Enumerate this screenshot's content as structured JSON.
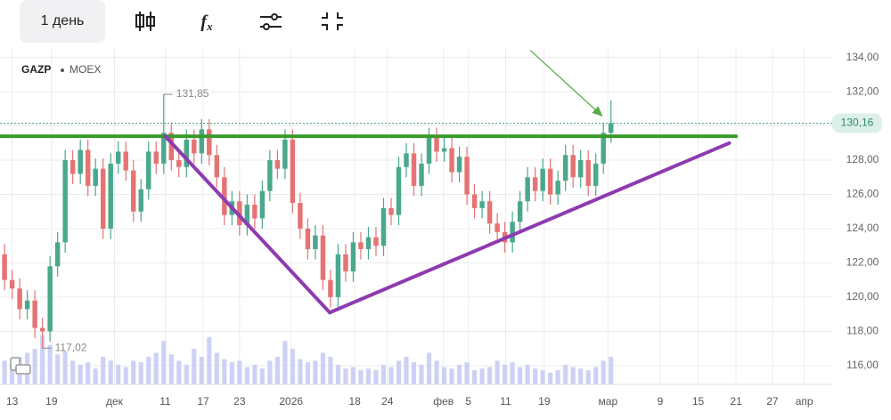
{
  "toolbar": {
    "interval": "1 день"
  },
  "chart_data": {
    "type": "candlestick",
    "ticker": "GAZP",
    "exchange": "MOEX",
    "open": [
      122.5,
      121,
      120.5,
      119.3,
      119.8,
      118.2,
      118.0,
      121.8,
      123.2,
      128.0,
      127.2,
      128.6,
      126.5,
      127.5,
      124.0,
      127.8,
      128.5,
      127.4,
      125.0,
      126.3,
      128.5,
      127.8,
      129.6,
      128.0,
      127.6,
      129.2,
      128.4,
      129.8,
      128.3,
      127.0,
      124.8,
      125.6,
      124.2,
      125.4,
      124.6,
      126.2,
      128.0,
      127.5,
      129.2,
      125.5,
      124.0,
      122.8,
      123.6,
      121.0,
      120.0,
      122.5,
      121.5,
      123.2,
      122.8,
      123.5,
      123.0,
      125.2,
      124.8,
      127.6,
      128.4,
      126.5,
      127.8,
      129.3,
      128.5,
      128.7,
      127.3,
      128.2,
      126.0,
      125.2,
      125.6,
      124.3,
      123.8,
      123.2,
      124.4,
      125.6,
      127.0,
      126.2,
      127.5,
      126.0,
      126.8,
      128.3,
      127.0,
      128.0,
      126.5,
      127.8,
      129.6
    ],
    "high": [
      123.1,
      121.6,
      121.1,
      120.4,
      120.4,
      118.8,
      122.4,
      123.8,
      128.6,
      128.6,
      129.2,
      129.2,
      128.1,
      128.1,
      128.4,
      129.1,
      129.1,
      128.0,
      126.9,
      129.1,
      129.1,
      131.85,
      130.2,
      128.6,
      129.8,
      129.8,
      130.4,
      130.4,
      128.9,
      127.6,
      126.2,
      126.2,
      126.0,
      126.0,
      126.8,
      128.6,
      128.6,
      129.8,
      129.8,
      126.1,
      124.6,
      124.2,
      124.2,
      121.6,
      123.1,
      123.1,
      123.8,
      123.8,
      124.1,
      124.1,
      125.8,
      125.8,
      128.2,
      129.0,
      129.0,
      128.4,
      129.9,
      129.9,
      129.3,
      129.3,
      128.8,
      128.8,
      126.6,
      126.2,
      126.2,
      124.9,
      124.4,
      125.0,
      126.2,
      127.6,
      127.6,
      128.1,
      128.1,
      127.4,
      128.9,
      128.9,
      128.6,
      128.6,
      128.4,
      130.2,
      131.5
    ],
    "low": [
      120.4,
      119.9,
      118.7,
      118.7,
      117.6,
      117.02,
      117.4,
      121.2,
      122.6,
      126.6,
      126.6,
      125.9,
      125.9,
      123.4,
      123.4,
      127.2,
      126.8,
      124.4,
      124.4,
      125.7,
      127.2,
      127.2,
      127.4,
      127.0,
      127.0,
      127.8,
      127.8,
      127.7,
      126.4,
      124.2,
      124.2,
      123.6,
      123.6,
      124.0,
      124.0,
      125.6,
      126.9,
      126.9,
      124.9,
      123.4,
      122.2,
      122.2,
      120.4,
      119.4,
      119.4,
      120.9,
      120.9,
      122.2,
      122.2,
      122.4,
      122.4,
      124.2,
      124.2,
      127.0,
      125.9,
      125.9,
      127.2,
      127.9,
      127.9,
      126.7,
      126.7,
      125.4,
      124.6,
      124.6,
      123.7,
      123.2,
      122.6,
      122.6,
      123.8,
      125.0,
      125.6,
      125.6,
      125.4,
      125.4,
      126.2,
      126.4,
      126.4,
      125.9,
      125.9,
      127.2,
      129.0
    ],
    "close": [
      121,
      120.5,
      119.3,
      119.8,
      118.2,
      118.0,
      121.8,
      123.2,
      128.0,
      127.2,
      128.6,
      126.5,
      127.5,
      124.0,
      127.8,
      128.5,
      127.4,
      125.0,
      126.3,
      128.5,
      127.8,
      129.6,
      128.0,
      127.6,
      129.2,
      128.4,
      129.8,
      128.3,
      127.0,
      124.8,
      125.6,
      124.2,
      125.4,
      124.6,
      126.2,
      128.0,
      127.5,
      129.2,
      125.5,
      124.0,
      122.8,
      123.6,
      121.0,
      120.0,
      122.5,
      121.5,
      123.2,
      122.8,
      123.5,
      123.0,
      125.2,
      124.8,
      127.6,
      128.4,
      126.5,
      127.8,
      129.3,
      128.5,
      128.7,
      127.3,
      128.2,
      126.0,
      125.2,
      125.6,
      124.3,
      123.8,
      123.2,
      124.4,
      125.6,
      127.0,
      126.2,
      127.5,
      126.0,
      126.8,
      128.3,
      127.0,
      128.0,
      126.5,
      127.8,
      129.6,
      130.16
    ],
    "volume": [
      30,
      28,
      35,
      40,
      45,
      62,
      50,
      38,
      42,
      30,
      25,
      28,
      20,
      35,
      30,
      25,
      22,
      30,
      28,
      35,
      40,
      55,
      38,
      30,
      25,
      45,
      35,
      60,
      40,
      32,
      28,
      30,
      22,
      25,
      20,
      30,
      35,
      55,
      45,
      32,
      28,
      30,
      40,
      35,
      25,
      20,
      22,
      18,
      20,
      18,
      25,
      22,
      30,
      35,
      28,
      25,
      40,
      30,
      22,
      20,
      25,
      28,
      18,
      20,
      22,
      30,
      25,
      28,
      22,
      25,
      20,
      18,
      15,
      18,
      25,
      22,
      20,
      18,
      22,
      30,
      35
    ],
    "up_color": "#4aa88c",
    "down_color": "#e57373",
    "volume_color": "#cdd1f6",
    "xlim": [
      -0.6,
      109.3
    ],
    "xticks": [
      {
        "value": 1,
        "label": "13"
      },
      {
        "value": 6.2,
        "label": "19"
      },
      {
        "value": 14.5,
        "label": "дек"
      },
      {
        "value": 21.2,
        "label": "11"
      },
      {
        "value": 26.2,
        "label": "17"
      },
      {
        "value": 31,
        "label": "23"
      },
      {
        "value": 37.8,
        "label": "2026"
      },
      {
        "value": 46.2,
        "label": "18"
      },
      {
        "value": 50.5,
        "label": "24"
      },
      {
        "value": 57.9,
        "label": "фев"
      },
      {
        "value": 61.2,
        "label": "5"
      },
      {
        "value": 66.1,
        "label": "11"
      },
      {
        "value": 71.2,
        "label": "19"
      },
      {
        "value": 79.6,
        "label": "мар"
      },
      {
        "value": 86.5,
        "label": "9"
      },
      {
        "value": 91.5,
        "label": "15"
      },
      {
        "value": 96.5,
        "label": "21"
      },
      {
        "value": 101.3,
        "label": "27"
      },
      {
        "value": 105.5,
        "label": "апр"
      }
    ],
    "ylim": [
      114.9,
      134.5
    ],
    "yticks": [
      {
        "value": 116,
        "label": "116,00"
      },
      {
        "value": 118,
        "label": "118,00"
      },
      {
        "value": 120,
        "label": "120,00"
      },
      {
        "value": 122,
        "label": "122,00"
      },
      {
        "value": 124,
        "label": "124,00"
      },
      {
        "value": 126,
        "label": "126,00"
      },
      {
        "value": 128,
        "label": "128,00"
      },
      {
        "value": 130,
        "label": "130,00"
      },
      {
        "value": 132,
        "label": "132,00"
      },
      {
        "value": 134,
        "label": "134,00"
      }
    ],
    "grid": true,
    "last_price": {
      "value": 130.16,
      "label": "130,16"
    },
    "extremes": [
      {
        "x": 21,
        "value": 131.85,
        "label": "131,85"
      },
      {
        "x": 5,
        "value": 117.02,
        "label": "117,02"
      }
    ],
    "drawings": [
      {
        "color": "#3a9a2e",
        "points": [
          [
            -0.6,
            129.4
          ],
          [
            96.5,
            129.4
          ]
        ]
      },
      {
        "color": "#8e3ab0",
        "points": [
          [
            21.2,
            129.4
          ],
          [
            42.9,
            119.1
          ],
          [
            95.6,
            129.0
          ]
        ]
      },
      {
        "color": "#5aaa4a",
        "arrow": true,
        "points": [
          [
            69.4,
            134.4
          ],
          [
            78.8,
            130.6
          ]
        ]
      }
    ]
  }
}
